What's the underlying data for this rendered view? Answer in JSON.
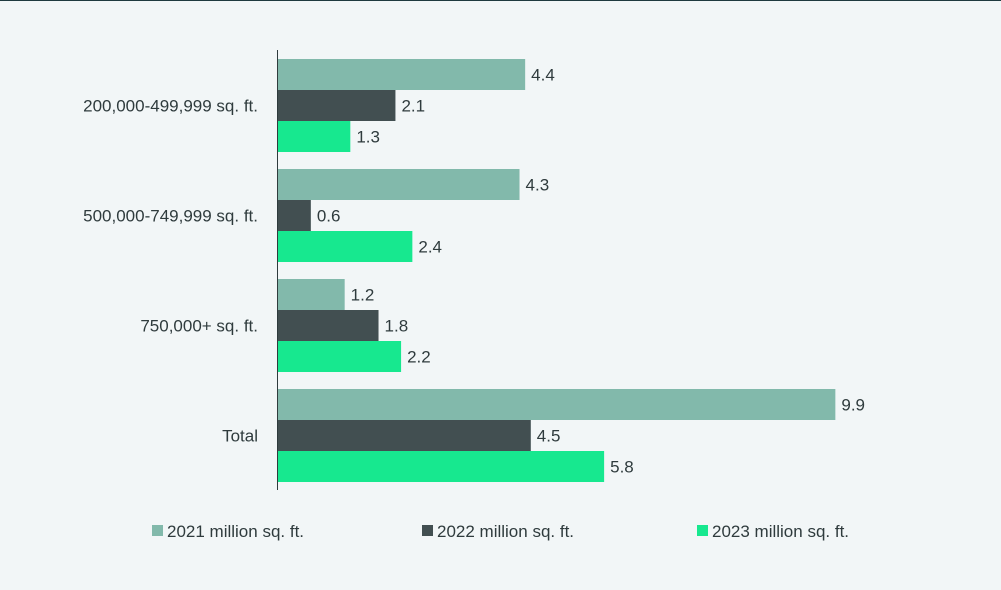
{
  "chart_data": {
    "type": "bar",
    "orientation": "horizontal",
    "title": "",
    "xlabel": "",
    "ylabel": "",
    "xlim": [
      0,
      10
    ],
    "grid": false,
    "legend_position": "bottom",
    "categories": [
      "200,000-499,999 sq. ft.",
      "500,000-749,999 sq. ft.",
      "750,000+ sq. ft.",
      "Total"
    ],
    "series": [
      {
        "name": "2021 million sq. ft.",
        "color": "#82b9ab",
        "values": [
          4.4,
          4.3,
          1.2,
          9.9
        ],
        "labels": [
          "4.4",
          "4.3",
          "1.2",
          "9.9"
        ]
      },
      {
        "name": "2022 million sq. ft.",
        "color": "#424f51",
        "values": [
          2.1,
          0.6,
          1.8,
          4.5
        ],
        "labels": [
          "2.1",
          "0.6",
          "1.8",
          "4.5"
        ]
      },
      {
        "name": "2023 million sq. ft.",
        "color": "#17e88f",
        "values": [
          1.3,
          2.4,
          2.2,
          5.8
        ],
        "labels": [
          "1.3",
          "2.4",
          "2.2",
          "5.8"
        ]
      }
    ]
  }
}
